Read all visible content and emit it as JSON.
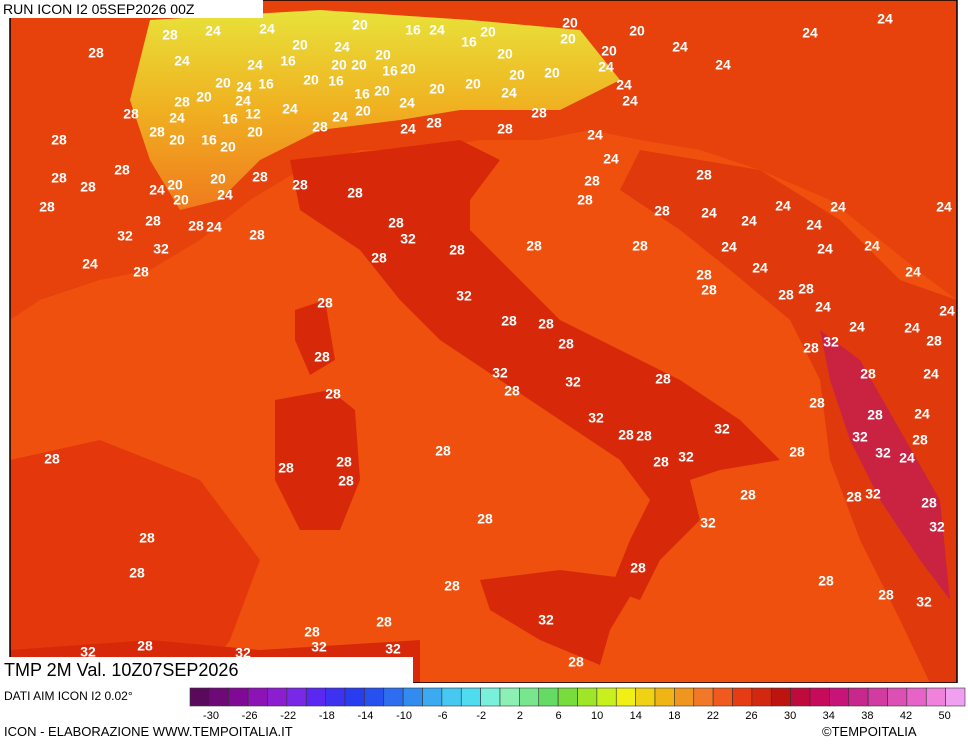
{
  "header": {
    "run": "RUN ICON I2 05SEP2026 00Z"
  },
  "footer": {
    "title": "TMP 2M Val. 10Z07SEP2026",
    "source": "DATI AIM ICON I2 0.02°",
    "credit": "ICON - ELABORAZIONE WWW.TEMPOITALIA.IT",
    "copyright": "©TEMPOITALIA"
  },
  "legend": {
    "ticks": [
      -30,
      -26,
      -22,
      -18,
      -14,
      -10,
      -6,
      -2,
      2,
      6,
      10,
      14,
      18,
      22,
      26,
      30,
      34,
      38,
      42,
      50
    ]
  },
  "map": {
    "labels": [
      "24",
      "28",
      "24",
      "20",
      "16",
      "24",
      "16",
      "20",
      "20",
      "20",
      "20",
      "24",
      "24",
      "28",
      "24",
      "20",
      "24",
      "16",
      "20",
      "20",
      "16",
      "20",
      "20",
      "20",
      "24",
      "24",
      "24",
      "16",
      "20",
      "24",
      "24",
      "20",
      "16",
      "20",
      "16",
      "20",
      "20",
      "20",
      "20",
      "20",
      "24",
      "24",
      "24",
      "28",
      "20",
      "24",
      "24",
      "20",
      "24",
      "28",
      "24",
      "16",
      "12",
      "28",
      "28",
      "20",
      "20",
      "28",
      "24",
      "24",
      "28",
      "28",
      "28",
      "16",
      "20",
      "24",
      "24",
      "28",
      "28",
      "28",
      "24",
      "20",
      "20",
      "20",
      "24",
      "28",
      "28",
      "28",
      "28",
      "28",
      "28",
      "28",
      "28",
      "28",
      "24",
      "28",
      "32",
      "32",
      "28",
      "32",
      "28",
      "28",
      "28",
      "28",
      "24",
      "24",
      "24",
      "24",
      "24",
      "24",
      "24",
      "24",
      "24",
      "24",
      "28",
      "28",
      "24",
      "24",
      "28",
      "28",
      "28",
      "28",
      "24",
      "24",
      "32",
      "28",
      "28",
      "28",
      "24",
      "24",
      "28",
      "32",
      "28",
      "28",
      "28",
      "32",
      "28",
      "32",
      "28",
      "28",
      "24",
      "28",
      "28",
      "32",
      "28",
      "28",
      "32",
      "28",
      "24",
      "32",
      "28",
      "32",
      "24",
      "28",
      "28",
      "28",
      "32",
      "28",
      "28",
      "28",
      "28",
      "28",
      "28",
      "32",
      "28",
      "28",
      "32",
      "32",
      "28",
      "28",
      "28",
      "28",
      "28",
      "28",
      "32",
      "32",
      "28",
      "28",
      "28",
      "32",
      "32",
      "32",
      "32",
      "28"
    ]
  }
}
